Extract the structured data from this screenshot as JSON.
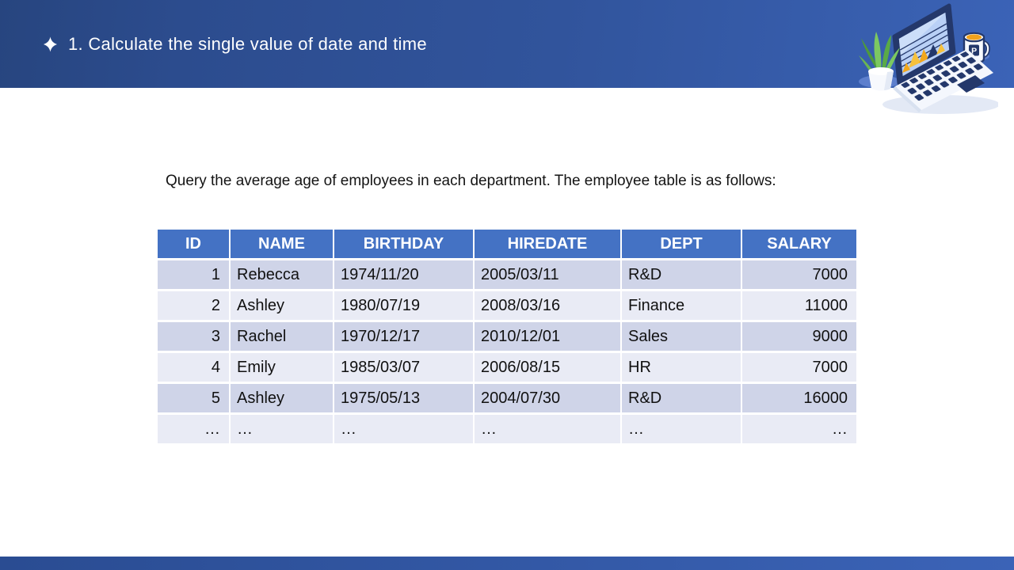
{
  "header": {
    "title": "1. Calculate the single value of date and time",
    "bullet_icon": "four-pointed-star-icon"
  },
  "description": "Query the average age of employees in each department. The employee table is as follows:",
  "table": {
    "columns": [
      {
        "label": "ID",
        "align": "right"
      },
      {
        "label": "NAME",
        "align": "left"
      },
      {
        "label": "BIRTHDAY",
        "align": "left"
      },
      {
        "label": "HIREDATE",
        "align": "left"
      },
      {
        "label": "DEPT",
        "align": "left"
      },
      {
        "label": "SALARY",
        "align": "right"
      }
    ],
    "rows": [
      [
        "1",
        "Rebecca",
        "1974/11/20",
        "2005/03/11",
        "R&D",
        "7000"
      ],
      [
        "2",
        "Ashley",
        "1980/07/19",
        "2008/03/16",
        "Finance",
        "11000"
      ],
      [
        "3",
        "Rachel",
        "1970/12/17",
        "2010/12/01",
        "Sales",
        "9000"
      ],
      [
        "4",
        "Emily",
        "1985/03/07",
        "2006/08/15",
        "HR",
        "7000"
      ],
      [
        "5",
        "Ashley",
        "1975/05/13",
        "2004/07/30",
        "R&D",
        "16000"
      ],
      [
        "…",
        "…",
        "…",
        "…",
        "…",
        "…"
      ]
    ]
  },
  "illustration": {
    "name": "laptop-desk-illustration",
    "mug_logo": "P"
  },
  "colors": {
    "header_gradient_start": "#27457f",
    "header_gradient_end": "#3b63b7",
    "footer_bar": "#2f55a8",
    "table_header_bg": "#4472c4",
    "row_band_dark": "#cfd4e8",
    "row_band_light": "#e9ebf5",
    "accent_navy": "#24386b",
    "chart_yellow": "#f6c13d"
  }
}
